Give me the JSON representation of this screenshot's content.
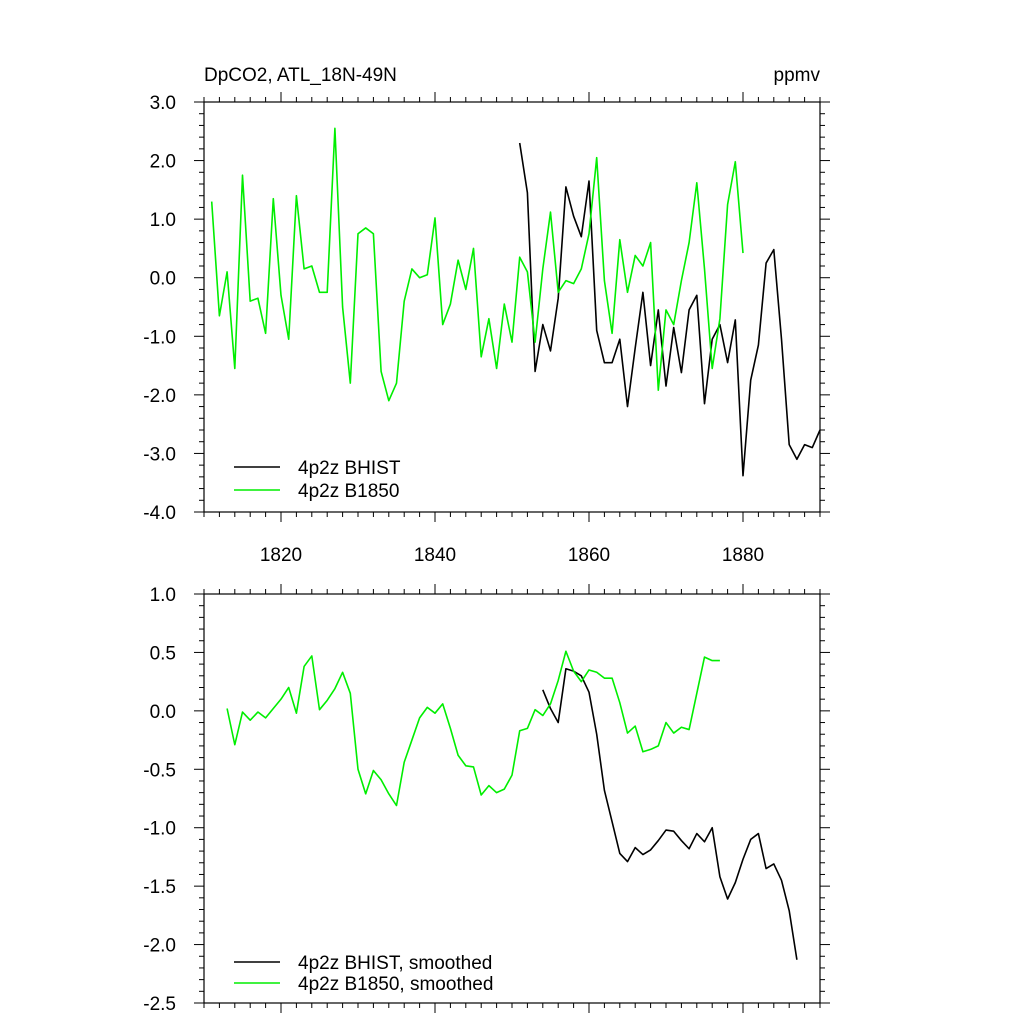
{
  "figure": {
    "title_left": "DpCO2, ATL_18N-49N",
    "title_right": "ppmv"
  },
  "chart_data": [
    {
      "type": "line",
      "xlim": [
        1810,
        1890
      ],
      "ylim": [
        -4.0,
        3.0
      ],
      "x_ticks": [
        1820,
        1840,
        1860,
        1880
      ],
      "y_ticks": [
        3.0,
        2.0,
        1.0,
        0.0,
        -1.0,
        -2.0,
        -3.0,
        -4.0
      ],
      "x_tick_labels": [
        "1820",
        "1840",
        "1860",
        "1880"
      ],
      "y_tick_labels": [
        "3.0",
        "2.0",
        "1.0",
        "0.0",
        "-1.0",
        "-2.0",
        "-3.0",
        "-4.0"
      ],
      "grid": false,
      "legend_position": "bottom-left",
      "series": [
        {
          "name": "4p2z BHIST",
          "color": "#000000",
          "x": [
            1851,
            1852,
            1853,
            1854,
            1855,
            1856,
            1857,
            1858,
            1859,
            1860,
            1861,
            1862,
            1863,
            1864,
            1865,
            1866,
            1867,
            1868,
            1869,
            1870,
            1871,
            1872,
            1873,
            1874,
            1875,
            1876,
            1877,
            1878,
            1879,
            1880,
            1881,
            1882,
            1883,
            1884,
            1885,
            1886,
            1887,
            1888,
            1889,
            1890
          ],
          "values": [
            2.3,
            1.45,
            -1.6,
            -0.8,
            -1.25,
            -0.35,
            1.55,
            1.05,
            0.7,
            1.65,
            -0.9,
            -1.45,
            -1.45,
            -1.05,
            -2.2,
            -1.2,
            -0.25,
            -1.5,
            -0.55,
            -1.85,
            -0.85,
            -1.62,
            -0.55,
            -0.3,
            -2.15,
            -1.05,
            -0.8,
            -1.45,
            -0.72,
            -3.38,
            -1.75,
            -1.15,
            0.25,
            0.48,
            -1.05,
            -2.85,
            -3.1,
            -2.85,
            -2.9,
            -2.6
          ]
        },
        {
          "name": "4p2z B1850",
          "color": "#00ee00",
          "x": [
            1811,
            1812,
            1813,
            1814,
            1815,
            1816,
            1817,
            1818,
            1819,
            1820,
            1821,
            1822,
            1823,
            1824,
            1825,
            1826,
            1827,
            1828,
            1829,
            1830,
            1831,
            1832,
            1833,
            1834,
            1835,
            1836,
            1837,
            1838,
            1839,
            1840,
            1841,
            1842,
            1843,
            1844,
            1845,
            1846,
            1847,
            1848,
            1849,
            1850,
            1851,
            1852,
            1853,
            1854,
            1855,
            1856,
            1857,
            1858,
            1859,
            1860,
            1861,
            1862,
            1863,
            1864,
            1865,
            1866,
            1867,
            1868,
            1869,
            1870,
            1871,
            1872,
            1873,
            1874,
            1875,
            1876,
            1877,
            1878,
            1879,
            1880
          ],
          "values": [
            1.3,
            -0.65,
            0.1,
            -1.55,
            1.75,
            -0.4,
            -0.35,
            -0.95,
            1.35,
            -0.3,
            -1.05,
            1.4,
            0.15,
            0.2,
            -0.25,
            -0.25,
            2.55,
            -0.5,
            -1.8,
            0.75,
            0.85,
            0.75,
            -1.6,
            -2.1,
            -1.8,
            -0.4,
            0.15,
            0.0,
            0.05,
            1.02,
            -0.8,
            -0.45,
            0.3,
            -0.2,
            0.5,
            -1.35,
            -0.7,
            -1.55,
            -0.45,
            -1.1,
            0.35,
            0.1,
            -1.1,
            0.15,
            1.12,
            -0.25,
            -0.05,
            -0.1,
            0.15,
            0.75,
            2.05,
            -0.05,
            -0.95,
            0.65,
            -0.25,
            0.38,
            0.2,
            0.6,
            -1.92,
            -0.55,
            -0.8,
            -0.05,
            0.6,
            1.62,
            0.15,
            -1.55,
            -0.7,
            1.25,
            1.98,
            0.42
          ]
        }
      ]
    },
    {
      "type": "line",
      "xlim": [
        1810,
        1890
      ],
      "ylim": [
        -2.5,
        1.0
      ],
      "x_ticks": [
        1820,
        1840,
        1860,
        1880
      ],
      "y_ticks": [
        1.0,
        0.5,
        0.0,
        -0.5,
        -1.0,
        -1.5,
        -2.0,
        -2.5
      ],
      "y_tick_labels": [
        "1.0",
        "0.5",
        "0.0",
        "-0.5",
        "-1.0",
        "-1.5",
        "-2.0",
        "-2.5"
      ],
      "grid": false,
      "legend_position": "bottom-left",
      "series": [
        {
          "name": "4p2z BHIST, smoothed",
          "color": "#000000",
          "x": [
            1854,
            1855,
            1856,
            1857,
            1858,
            1859,
            1860,
            1861,
            1862,
            1863,
            1864,
            1865,
            1866,
            1867,
            1868,
            1869,
            1870,
            1871,
            1872,
            1873,
            1874,
            1875,
            1876,
            1877,
            1878,
            1879,
            1880,
            1881,
            1882,
            1883,
            1884,
            1885,
            1886,
            1887
          ],
          "values": [
            0.18,
            0.02,
            -0.1,
            0.36,
            0.34,
            0.3,
            0.16,
            -0.2,
            -0.68,
            -0.95,
            -1.22,
            -1.29,
            -1.17,
            -1.23,
            -1.19,
            -1.11,
            -1.02,
            -1.03,
            -1.11,
            -1.18,
            -1.05,
            -1.12,
            -1.0,
            -1.42,
            -1.61,
            -1.47,
            -1.27,
            -1.1,
            -1.05,
            -1.35,
            -1.31,
            -1.45,
            -1.71,
            -2.13
          ]
        },
        {
          "name": "4p2z B1850, smoothed",
          "color": "#00ee00",
          "x": [
            1813,
            1814,
            1815,
            1816,
            1817,
            1818,
            1819,
            1820,
            1821,
            1822,
            1823,
            1824,
            1825,
            1826,
            1827,
            1828,
            1829,
            1830,
            1831,
            1832,
            1833,
            1834,
            1835,
            1836,
            1837,
            1838,
            1839,
            1840,
            1841,
            1842,
            1843,
            1844,
            1845,
            1846,
            1847,
            1848,
            1849,
            1850,
            1851,
            1852,
            1853,
            1854,
            1855,
            1856,
            1857,
            1858,
            1859,
            1860,
            1861,
            1862,
            1863,
            1864,
            1865,
            1866,
            1867,
            1868,
            1869,
            1870,
            1871,
            1872,
            1873,
            1874,
            1875,
            1876,
            1877
          ],
          "values": [
            0.02,
            -0.29,
            -0.01,
            -0.08,
            -0.01,
            -0.06,
            0.02,
            0.1,
            0.2,
            -0.02,
            0.38,
            0.47,
            0.01,
            0.09,
            0.19,
            0.33,
            0.15,
            -0.5,
            -0.71,
            -0.51,
            -0.59,
            -0.71,
            -0.81,
            -0.44,
            -0.25,
            -0.06,
            0.03,
            -0.02,
            0.06,
            -0.15,
            -0.38,
            -0.47,
            -0.48,
            -0.72,
            -0.64,
            -0.7,
            -0.67,
            -0.55,
            -0.17,
            -0.15,
            0.01,
            -0.04,
            0.06,
            0.26,
            0.51,
            0.34,
            0.25,
            0.35,
            0.33,
            0.28,
            0.28,
            0.07,
            -0.19,
            -0.13,
            -0.35,
            -0.33,
            -0.3,
            -0.1,
            -0.19,
            -0.14,
            -0.16,
            0.15,
            0.46,
            0.43,
            0.43
          ]
        }
      ]
    }
  ]
}
